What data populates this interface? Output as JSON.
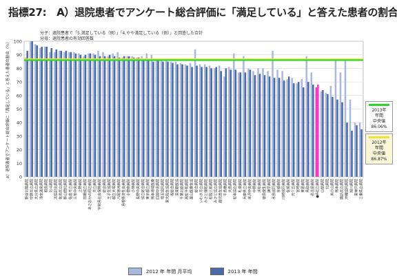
{
  "title": "指標27:　A）退院患者でアンケート総合評価に「満足している」と答えた患者の割合",
  "notes": {
    "numerator": "分子：退院患者で「5.満足している（例）」「4.やや満足している（例）」と回答した合計",
    "denominator": "分母：退院患者の有効回答数"
  },
  "legend": {
    "median_2013_title": "2013年\n年間\n中央値",
    "median_2013_value": "86.06%",
    "median_2012_title": "2012年\n年間\n中央値",
    "median_2012_value": "86.87%",
    "series_2012_label": "2012 年 年間 月平均",
    "series_2013_label": "2013 年 年間"
  },
  "colors": {
    "series_2012": "#a9b9dd",
    "series_2013": "#4a6aa8",
    "highlight": "#ff33cc",
    "median_2013": "#29d629",
    "median_2012": "#f0e040",
    "plot_bg": "#ffffff"
  },
  "chart_data": {
    "type": "bar",
    "ylabel": "A）退院患者でアンケート総合評価に「満足している」と答えた患者の割合（％）",
    "ylim": [
      0,
      100
    ],
    "yticks": [
      0,
      10,
      20,
      30,
      40,
      50,
      60,
      70,
      80,
      90,
      100
    ],
    "grid": true,
    "highlight_index": 60,
    "categories": [
      "新谷北陽病院",
      "中野共立病院",
      "大分県立病院",
      "浅虫温泉病院",
      "相良病院",
      "北斗病院",
      "浜脇記念病院",
      "佐用共立病院",
      "新山間北病院",
      "佐倉市立病院",
      "三条中央病院",
      "上野病院",
      "前橋協立病院",
      "あさおかの周辺病院",
      "共立病院",
      "宇和島社会保険病院",
      "総合病院",
      "王子生協病院",
      "都立大塚病院",
      "八尾徳洲病院",
      "島根県済生会病院",
      "小菅南病院",
      "小林病院",
      "長野中央病院",
      "協立総合病院",
      "東京都立病院",
      "熊本地域医療",
      "四国中央病院",
      "埼玉協同病院",
      "東大阪生協病院",
      "坂総合病院",
      "道東勤医協",
      "千葉北総病院",
      "高松平和病院",
      "富山医療生協",
      "総合病院",
      "いわき市立病院",
      "みさと健和病院",
      "松阪三和病院",
      "みさと協立病院",
      "鹿児島生協病院",
      "千鳥橋病院",
      "大島病院",
      "松本協立病院",
      "札幌病院",
      "兵庫県立病院",
      "米沢中央病院",
      "中野病院",
      "浜松病院",
      "徳島健生病院",
      "諫早病院",
      "水島協同病院",
      "京都病院",
      "川崎協同病院",
      "佐賀病院",
      "光ケ丘病院",
      "宮崎病院",
      "東葛病院",
      "鳥取病院",
      "名古屋病院",
      "●A社立病院",
      "山梨病院",
      "北病院",
      "米の山病院",
      "熊本病院",
      "諏訪共立病院",
      "沖縄協同病院",
      "旭川病院",
      "東神戸病院",
      "三重県立病院"
    ],
    "series": [
      {
        "name": "2012 年 年間 月平均",
        "values": [
          88,
          100,
          98,
          95,
          96,
          92,
          92,
          93,
          92,
          92,
          92,
          91,
          89,
          91,
          91,
          93,
          92,
          89,
          91,
          92,
          88,
          89,
          89,
          88,
          89,
          91,
          90,
          87,
          87,
          86,
          85,
          85,
          84,
          83,
          84,
          94,
          83,
          83,
          82,
          80,
          82,
          74,
          81,
          91,
          77,
          89,
          80,
          78,
          80,
          80,
          78,
          93,
          79,
          78,
          72,
          73,
          69,
          72,
          89,
          77,
          66,
          63,
          62,
          67,
          87,
          77,
          87,
          57,
          40,
          40
        ]
      },
      {
        "name": "2013 年 年間",
        "values": [
          93,
          100,
          97,
          96,
          96,
          95,
          94,
          93,
          93,
          92,
          91,
          90,
          90,
          91,
          90,
          89,
          89,
          90,
          89,
          88,
          89,
          89,
          88,
          88,
          87,
          87,
          85,
          86,
          85,
          85,
          84,
          83,
          83,
          82,
          81,
          82,
          81,
          81,
          80,
          81,
          78,
          80,
          79,
          79,
          77,
          77,
          79,
          75,
          76,
          75,
          74,
          73,
          73,
          71,
          74,
          69,
          70,
          66,
          70,
          68,
          68,
          64,
          61,
          59,
          57,
          55,
          40,
          34,
          38,
          35
        ]
      }
    ]
  }
}
